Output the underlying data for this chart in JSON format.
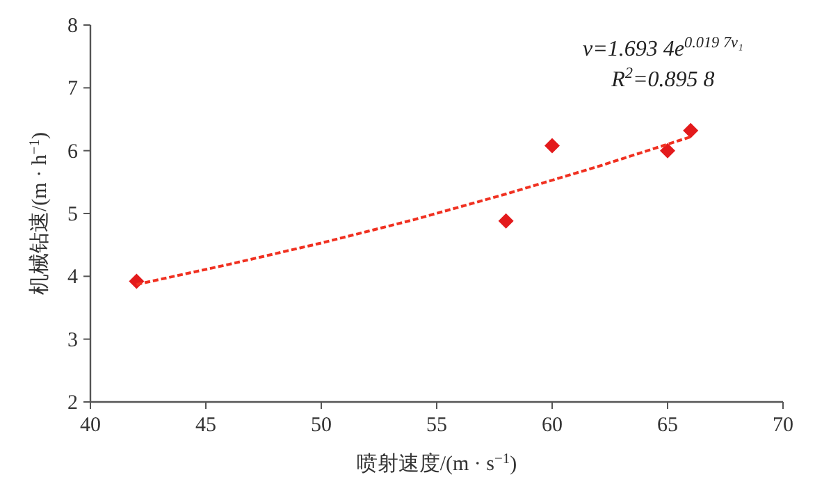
{
  "chart_data": {
    "type": "scatter",
    "xlabel": "喷射速度/(m · s$^{−1}$)",
    "ylabel": "机械钻速/(m · h$^{−1}$)",
    "xlim": [
      40,
      70
    ],
    "ylim": [
      2,
      8
    ],
    "xticks": [
      40,
      45,
      50,
      55,
      60,
      65,
      70
    ],
    "yticks": [
      2,
      3,
      4,
      5,
      6,
      7,
      8
    ],
    "grid": false,
    "marker": "diamond",
    "series": [
      {
        "type": "scatter",
        "color": "#e31a1c",
        "x": [
          42,
          58,
          60,
          65,
          66
        ],
        "values": [
          3.92,
          4.88,
          6.08,
          6.0,
          6.32
        ]
      },
      {
        "type": "line",
        "color": "#f03020",
        "line_style": "dashed",
        "marker": "none",
        "x": [
          42,
          46,
          50,
          54,
          58,
          62,
          66
        ],
        "values": [
          3.87,
          4.19,
          4.53,
          4.9,
          5.31,
          5.75,
          6.22
        ]
      }
    ],
    "annotations": [
      "v=1.693 4e$^{0.019 7v₁}$",
      "R$^{2}$=0.895 8"
    ]
  }
}
